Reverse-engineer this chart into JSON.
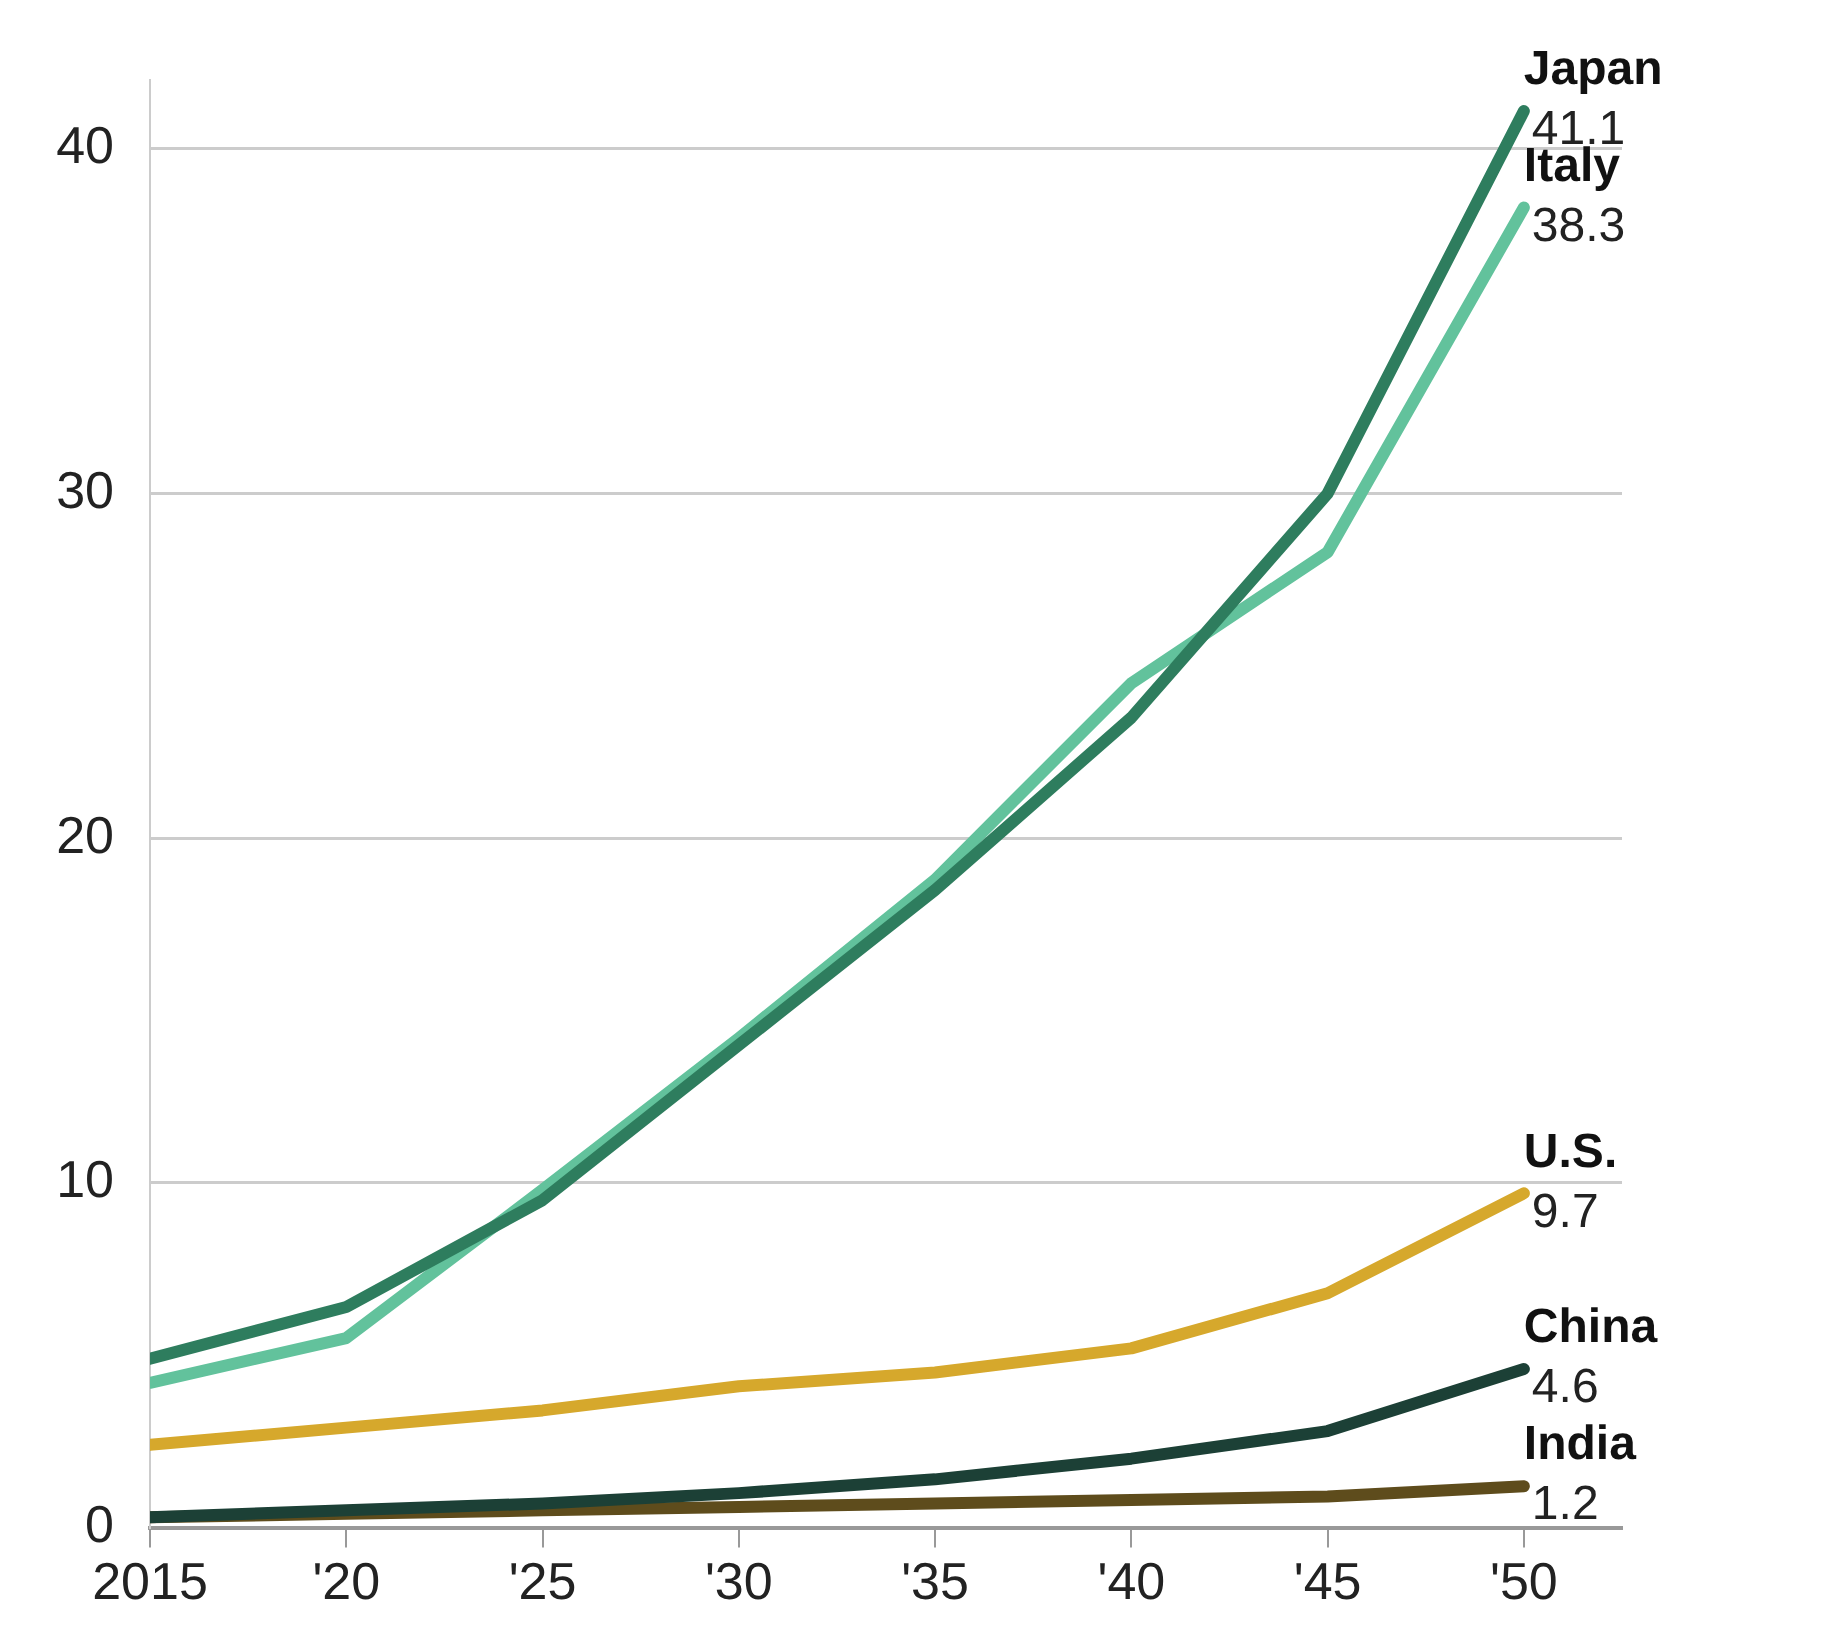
{
  "chart_data": {
    "type": "line",
    "x": [
      2015,
      2020,
      2025,
      2030,
      2035,
      2040,
      2045,
      2050
    ],
    "series": [
      {
        "name": "Japan",
        "color": "#2e7d5e",
        "values": [
          4.9,
          6.4,
          9.5,
          14,
          18.5,
          23.5,
          30,
          41.1
        ],
        "value_labels": [
          null,
          null,
          null,
          null,
          null,
          null,
          null,
          "41.1"
        ]
      },
      {
        "name": "Italy",
        "color": "#62c29c",
        "values": [
          4.2,
          5.5,
          9.8,
          14.2,
          18.8,
          24.5,
          28.3,
          38.3
        ],
        "value_labels": [
          null,
          null,
          null,
          null,
          null,
          null,
          null,
          "38.3"
        ]
      },
      {
        "name": "U.S.",
        "color": "#d6a82c",
        "values": [
          2.4,
          2.9,
          3.4,
          4.1,
          4.5,
          5.2,
          6.8,
          9.7
        ],
        "value_labels": [
          null,
          null,
          null,
          null,
          null,
          null,
          null,
          "9.7"
        ]
      },
      {
        "name": "China",
        "color": "#1c4036",
        "values": [
          0.3,
          0.5,
          0.7,
          1.0,
          1.4,
          2.0,
          2.8,
          4.6
        ],
        "value_labels": [
          null,
          null,
          null,
          null,
          null,
          null,
          null,
          "4.6"
        ]
      },
      {
        "name": "India",
        "color": "#5e4c1c",
        "values": [
          0.3,
          0.4,
          0.5,
          0.6,
          0.7,
          0.8,
          0.9,
          1.2
        ],
        "value_labels": [
          null,
          null,
          null,
          null,
          null,
          null,
          null,
          "1.2"
        ]
      }
    ],
    "xlim": [
      2015,
      2052.5
    ],
    "xticks": [
      2015,
      {
        "value": 2020,
        "label": "'20"
      },
      {
        "value": 2025,
        "label": "'25"
      },
      {
        "value": 2030,
        "label": "'30"
      },
      {
        "value": 2035,
        "label": "'35"
      },
      {
        "value": 2040,
        "label": "'40"
      },
      {
        "value": 2045,
        "label": "'45"
      },
      {
        "value": 2050,
        "label": "'50"
      }
    ],
    "ylim": [
      0,
      42
    ],
    "yticks": [
      0,
      10,
      20,
      30,
      40
    ],
    "grid": "y",
    "legend": false,
    "marker": "none",
    "line_style": "solid"
  }
}
